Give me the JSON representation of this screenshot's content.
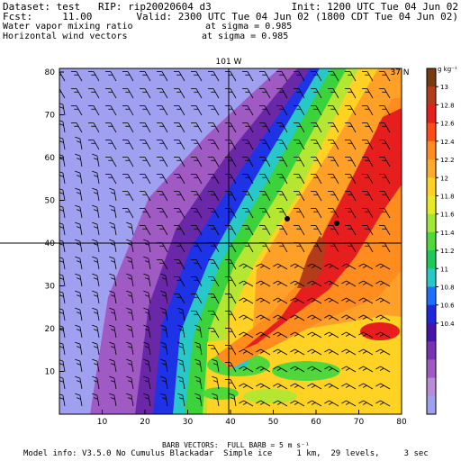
{
  "header": {
    "dataset_line": "Dataset: test   RIP: rip20020604 d3",
    "fcst_line": "Fcst:     11.00",
    "init_line": "Init: 1200 UTC Tue 04 Jun 02",
    "valid_line": "Valid: 2300 UTC Tue 04 Jun 02 (1800 CDT Tue 04 Jun 02)",
    "field1_label": "Water vapor mixing ratio",
    "field1_level": "at sigma = 0.985",
    "field2_label": "Horizontal wind vectors",
    "field2_level": "at sigma = 0.985"
  },
  "map": {
    "meridian_label": "101 W",
    "parallel_label": "37 N",
    "x_ticks": [
      "10",
      "20",
      "30",
      "40",
      "50",
      "60",
      "70",
      "80"
    ],
    "y_ticks": [
      "10",
      "20",
      "30",
      "40",
      "50",
      "60",
      "70",
      "80"
    ],
    "station_markers": 2
  },
  "colorbar": {
    "units": "g kg⁻¹",
    "labels": [
      "13",
      "12.8",
      "12.6",
      "12.4",
      "12.2",
      "12",
      "11.8",
      "11.6",
      "11.4",
      "11.2",
      "11",
      "10.8",
      "10.6",
      "10.4"
    ],
    "colors": [
      "#7a3a10",
      "#b33d1a",
      "#e61e1e",
      "#ff4b14",
      "#ff8c1e",
      "#ffaa28",
      "#ffd223",
      "#e6eb23",
      "#a0e632",
      "#50d73c",
      "#1ec85a",
      "#28c8c8",
      "#1e6eff",
      "#1e28dc",
      "#4614aa",
      "#7832b4",
      "#a05ac3",
      "#b98cd7",
      "#a0a0f0"
    ]
  },
  "footer": {
    "barb_line": "BARB VECTORS:  FULL BARB = 5 m s⁻¹",
    "model_line": "Model info: V3.5.0 No Cumulus Blackadar  Simple ice     1 km,  29 levels,     3 sec"
  }
}
